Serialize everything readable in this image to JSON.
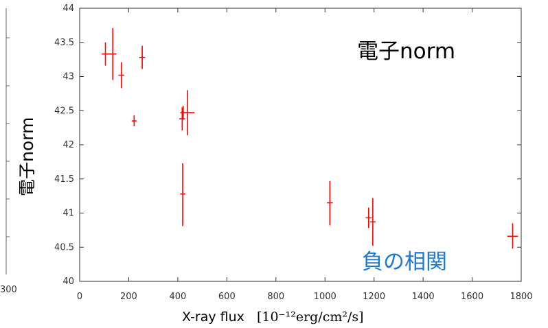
{
  "chart_data": {
    "type": "scatter",
    "title": "",
    "xlabel": "X-ray flux",
    "xlabel_unit": "[10⁻¹²erg/cm²/s]",
    "ylabel": "電子norm",
    "xlim": [
      0,
      1800
    ],
    "ylim": [
      40,
      44
    ],
    "xticks": [
      "0",
      "200",
      "400",
      "600",
      "800",
      "1000",
      "1200",
      "1400",
      "1600",
      "1800"
    ],
    "yticks": [
      "40",
      "40.5",
      "41",
      "41.5",
      "42",
      "42.5",
      "43",
      "43.5",
      "44"
    ],
    "grid": false,
    "series_color": "#ff0000",
    "points": [
      {
        "x": 105,
        "y": 43.33,
        "xerr": 15,
        "yerr_low": 0.17,
        "yerr_high": 0.17
      },
      {
        "x": 135,
        "y": 43.33,
        "xerr": 15,
        "yerr_low": 0.38,
        "yerr_high": 0.38
      },
      {
        "x": 170,
        "y": 43.02,
        "xerr": 12,
        "yerr_low": 0.19,
        "yerr_high": 0.19
      },
      {
        "x": 222,
        "y": 42.35,
        "xerr": 10,
        "yerr_low": 0.08,
        "yerr_high": 0.08
      },
      {
        "x": 255,
        "y": 43.28,
        "xerr": 12,
        "yerr_low": 0.17,
        "yerr_high": 0.17
      },
      {
        "x": 418,
        "y": 42.38,
        "xerr": 12,
        "yerr_low": 0.17,
        "yerr_high": 0.17
      },
      {
        "x": 422,
        "y": 42.47,
        "xerr": 12,
        "yerr_low": 0.1,
        "yerr_high": 0.1
      },
      {
        "x": 440,
        "y": 42.47,
        "xerr": 28,
        "yerr_low": 0.33,
        "yerr_high": 0.33
      },
      {
        "x": 420,
        "y": 41.28,
        "xerr": 10,
        "yerr_low": 0.47,
        "yerr_high": 0.45
      },
      {
        "x": 1020,
        "y": 41.15,
        "xerr": 12,
        "yerr_low": 0.33,
        "yerr_high": 0.32
      },
      {
        "x": 1178,
        "y": 40.93,
        "xerr": 12,
        "yerr_low": 0.15,
        "yerr_high": 0.15
      },
      {
        "x": 1195,
        "y": 40.87,
        "xerr": 12,
        "yerr_low": 0.35,
        "yerr_high": 0.35
      },
      {
        "x": 1765,
        "y": 40.66,
        "xerr": 22,
        "yerr_low": 0.18,
        "yerr_high": 0.19
      }
    ],
    "annotations": [
      {
        "text": "電子norm",
        "color": "#000000",
        "position": "top-right"
      },
      {
        "text": "負の相関",
        "color": "#1f78d1",
        "position": "bottom-right"
      }
    ]
  }
}
